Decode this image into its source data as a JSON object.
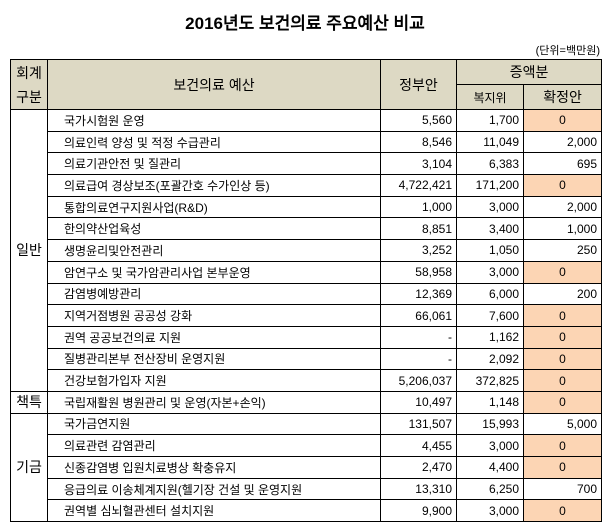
{
  "title": "2016년도 보건의료 주요예산 비교",
  "unit": "(단위=백만원)",
  "headers": {
    "group": "회계 구분",
    "name": "보건의료 예산",
    "gov": "정부안",
    "increase": "증액분",
    "committee": "복지위",
    "final": "확정안"
  },
  "colors": {
    "header_bg": "#ddd9c4",
    "zero_highlight": "#fcd5b4"
  },
  "groups": [
    {
      "label": "일반",
      "rows": [
        {
          "name": "국가시험원 운영",
          "gov": "5,560",
          "committee": "1,700",
          "final": "0"
        },
        {
          "name": "의료인력 양성 및 적정 수급관리",
          "gov": "8,546",
          "committee": "11,049",
          "final": "2,000"
        },
        {
          "name": "의료기관안전 및 질관리",
          "gov": "3,104",
          "committee": "6,383",
          "final": "695"
        },
        {
          "name": "의료급여 경상보조(포괄간호 수가인상 등)",
          "gov": "4,722,421",
          "committee": "171,200",
          "final": "0"
        },
        {
          "name": "통합의료연구지원사업(R&D)",
          "gov": "1,000",
          "committee": "3,000",
          "final": "2,000"
        },
        {
          "name": "한의약산업육성",
          "gov": "8,851",
          "committee": "3,400",
          "final": "1,000"
        },
        {
          "name": "생명윤리및안전관리",
          "gov": "3,252",
          "committee": "1,050",
          "final": "250"
        },
        {
          "name": "암연구소 및 국가암관리사업 본부운영",
          "gov": "58,958",
          "committee": "3,000",
          "final": "0"
        },
        {
          "name": "감염병예방관리",
          "gov": "12,369",
          "committee": "6,000",
          "final": "200"
        },
        {
          "name": "지역거점병원 공공성 강화",
          "gov": "66,061",
          "committee": "7,600",
          "final": "0"
        },
        {
          "name": "권역 공공보건의료 지원",
          "gov": "-",
          "committee": "1,162",
          "final": "0"
        },
        {
          "name": "질병관리본부 전산장비 운영지원",
          "gov": "-",
          "committee": "2,092",
          "final": "0"
        },
        {
          "name": "건강보험가입자 지원",
          "gov": "5,206,037",
          "committee": "372,825",
          "final": "0"
        }
      ]
    },
    {
      "label": "책특",
      "rows": [
        {
          "name": "국립재활원 병원관리 및 운영(자본+손익)",
          "gov": "10,497",
          "committee": "1,148",
          "final": "0"
        }
      ]
    },
    {
      "label": "기금",
      "rows": [
        {
          "name": "국가금연지원",
          "gov": "131,507",
          "committee": "15,993",
          "final": "5,000"
        },
        {
          "name": "의료관련 감염관리",
          "gov": "4,455",
          "committee": "3,000",
          "final": "0"
        },
        {
          "name": "신종감염병 입원치료병상 확충유지",
          "gov": "2,470",
          "committee": "4,400",
          "final": "0"
        },
        {
          "name": "응급의료 이송체계지원(헬기장 건설 및 운영지원",
          "gov": "13,310",
          "committee": "6,250",
          "final": "700"
        },
        {
          "name": "권역별 심뇌혈관센터 설치지원",
          "gov": "9,900",
          "committee": "3,000",
          "final": "0"
        }
      ]
    }
  ]
}
